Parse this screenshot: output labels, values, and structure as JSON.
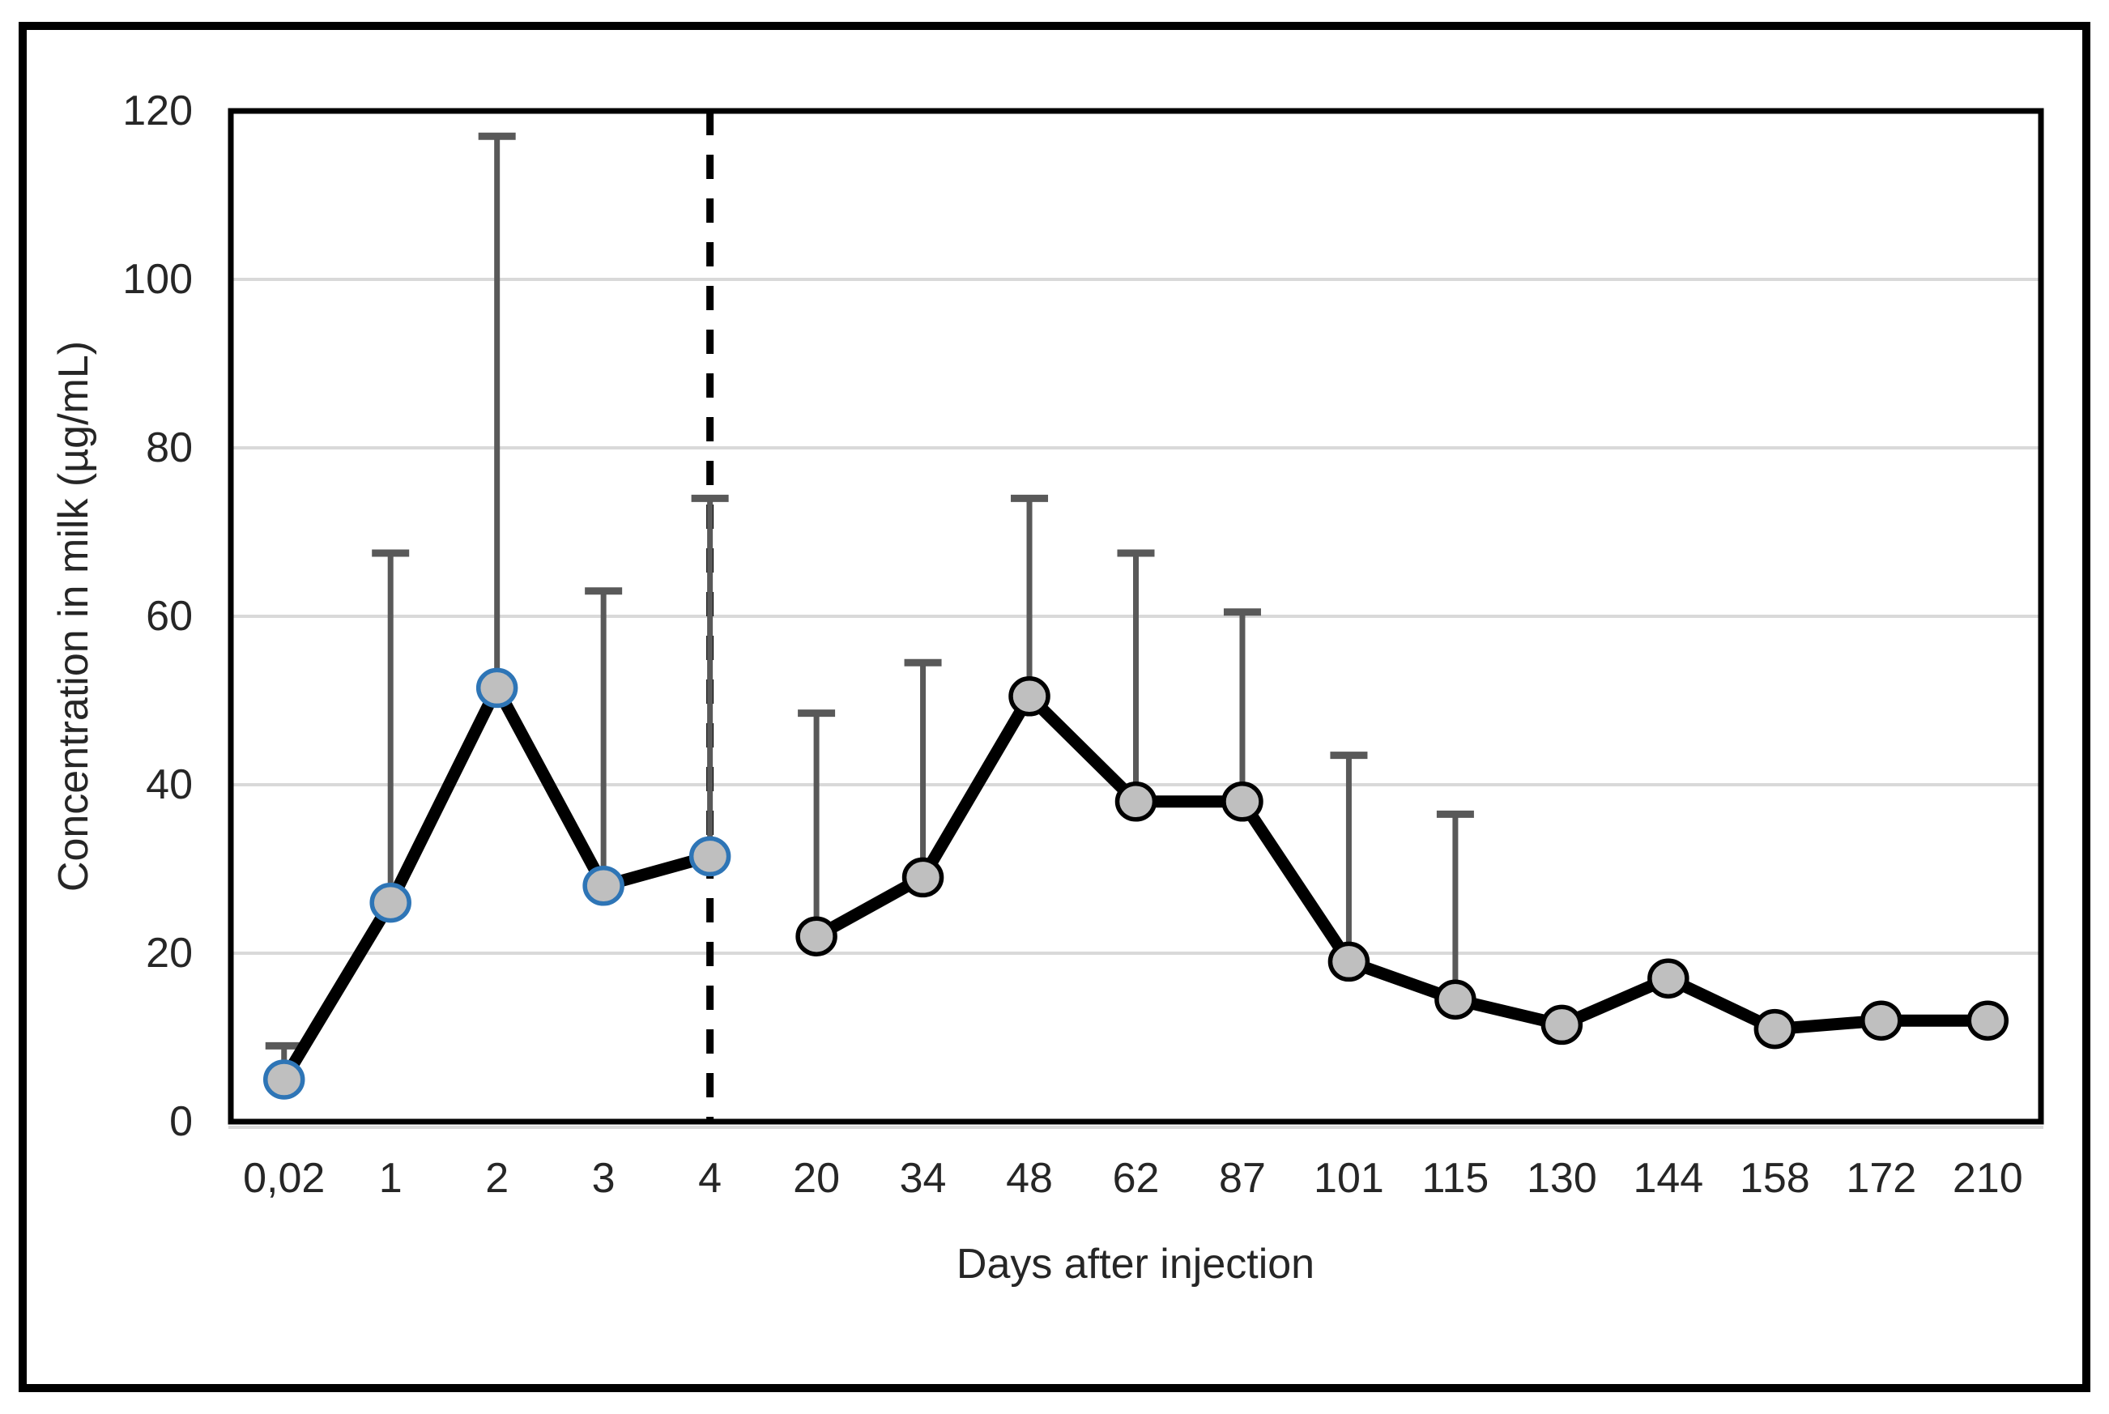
{
  "figure": {
    "background_color": "#ffffff",
    "outer_border_color": "#000000",
    "plot_border_color": "#000000",
    "gridline_color": "#d9d9d9",
    "text_color": "#262626",
    "error_bar_color": "#595959",
    "line_color": "#000000",
    "marker_fill": "#bfbfbf",
    "separator_line_style": "dashed",
    "separator_line_color": "#000000"
  },
  "chart_data": {
    "type": "line",
    "title": "",
    "xlabel": "Days after injection",
    "ylabel": "Concentration in milk (µg/mL)",
    "ylim": [
      0,
      120
    ],
    "ytick_step": 20,
    "y_tick_labels": [
      "0",
      "20",
      "40",
      "60",
      "80",
      "100",
      "120"
    ],
    "grid": true,
    "legend": "none",
    "categories": [
      "0,02",
      "1",
      "2",
      "3",
      "4",
      "20",
      "34",
      "48",
      "62",
      "87",
      "101",
      "115",
      "130",
      "144",
      "158",
      "172",
      "210"
    ],
    "separator_after_category": "4",
    "error_bars": "upper only",
    "series": [
      {
        "name": "segment-days-0.02-to-4",
        "marker_outline_color": "#2e75b6",
        "category_indices": [
          0,
          1,
          2,
          3,
          4
        ],
        "values": [
          5,
          26,
          51.5,
          28,
          31.5
        ],
        "error_top_values": [
          9,
          67.5,
          117,
          63,
          74
        ]
      },
      {
        "name": "segment-days-20-to-210",
        "marker_outline_color": "#000000",
        "category_indices": [
          5,
          6,
          7,
          8,
          9,
          10,
          11,
          12,
          13,
          14,
          15,
          16
        ],
        "values": [
          22,
          29,
          50.5,
          38,
          38,
          19,
          14.5,
          11.5,
          17,
          11,
          12,
          12
        ],
        "error_top_values": [
          48.5,
          54.5,
          74,
          67.5,
          60.5,
          43.5,
          36.5,
          null,
          null,
          null,
          null,
          null
        ]
      }
    ]
  }
}
